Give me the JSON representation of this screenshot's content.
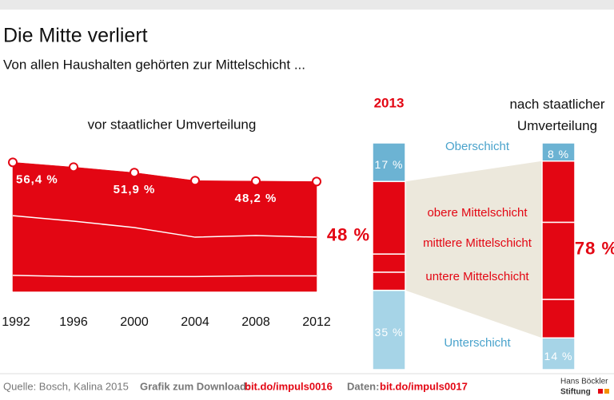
{
  "header": {
    "title": "Die Mitte verliert",
    "subtitle": "Von allen Haushalten gehörten zur Mittelschicht ..."
  },
  "chart_data": [
    {
      "type": "area",
      "title": "vor staatlicher Umverteilung",
      "x": [
        1992,
        1996,
        2000,
        2004,
        2008,
        2012
      ],
      "xlim": [
        1992,
        2012
      ],
      "ylim": [
        0,
        60
      ],
      "values": [
        56.4,
        54.3,
        51.9,
        48.4,
        48.2,
        48
      ],
      "value_labels": [
        "56,4 %",
        null,
        "51,9 %",
        null,
        "48,2 %",
        null
      ],
      "color": "#e30613",
      "series": [
        {
          "color": "#e30613",
          "values": [
            7,
            6.5,
            6.5,
            6.5,
            6.8,
            6.8
          ]
        },
        {
          "color": "#e30613",
          "values": [
            26.1,
            24.2,
            21.4,
            17.2,
            17.6,
            16.9
          ]
        },
        {
          "color": "#e30613",
          "values": [
            23.3,
            23.6,
            24.0,
            24.7,
            23.8,
            24.3
          ]
        }
      ]
    },
    {
      "type": "stacked-bar",
      "categories": [
        "2013",
        "nach staatlicher Umverteilung"
      ],
      "ylim": [
        0,
        100
      ],
      "series": [
        {
          "name": "Unterschicht",
          "color": "#a6d4e7",
          "values": [
            35,
            14
          ],
          "value_labels": [
            "35 %",
            "14 %"
          ]
        },
        {
          "name": "untere Mittelschicht",
          "color": "#e30613",
          "values": [
            8,
            17
          ]
        },
        {
          "name": "mittlere Mittelschicht",
          "color": "#e30613",
          "values": [
            8,
            34
          ]
        },
        {
          "name": "obere Mittelschicht",
          "color": "#e30613",
          "values": [
            32,
            27
          ]
        },
        {
          "name": "Oberschicht",
          "color": "#6cb3d3",
          "values": [
            17,
            8
          ],
          "value_labels": [
            "17 %",
            "8 %"
          ]
        }
      ],
      "totals": {
        "values": [
          48,
          78
        ],
        "value_labels": [
          "48 %",
          "78 %"
        ]
      }
    }
  ],
  "footer": {
    "source": "Quelle:  Bosch, Kalina 2015",
    "download_label": "Grafik zum Download:",
    "download_link": "bit.do/impuls0016",
    "data_label": "Daten:",
    "data_link": "bit.do/impuls0017",
    "logo": [
      "Hans Böckler",
      "Stiftung"
    ]
  }
}
